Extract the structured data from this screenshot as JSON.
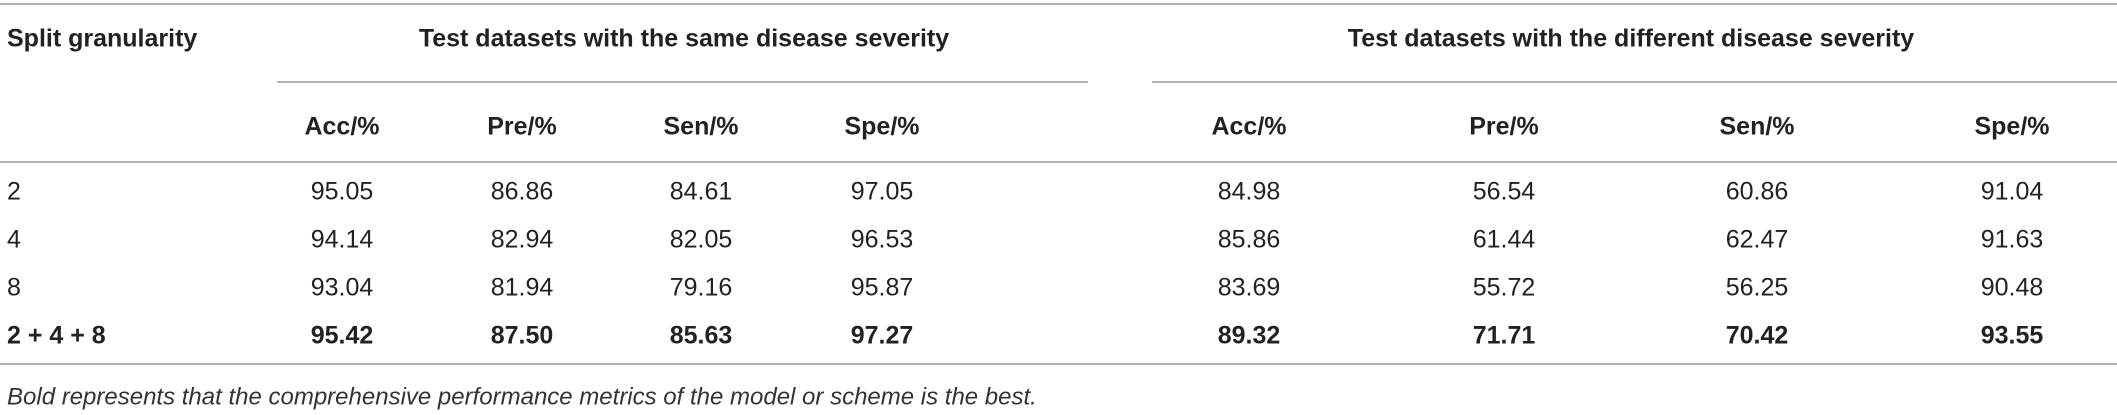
{
  "table": {
    "corner": "Split granularity",
    "groups": [
      "Test datasets with the same disease severity",
      "Test datasets with the different disease severity"
    ],
    "columns": [
      "Acc/%",
      "Pre/%",
      "Sen/%",
      "Spe/%",
      "Acc/%",
      "Pre/%",
      "Sen/%",
      "Spe/%"
    ],
    "rows": [
      [
        "2",
        "95.05",
        "86.86",
        "84.61",
        "97.05",
        "84.98",
        "56.54",
        "60.86",
        "91.04"
      ],
      [
        "4",
        "94.14",
        "82.94",
        "82.05",
        "96.53",
        "85.86",
        "61.44",
        "62.47",
        "91.63"
      ],
      [
        "8",
        "93.04",
        "81.94",
        "79.16",
        "95.87",
        "83.69",
        "55.72",
        "56.25",
        "90.48"
      ],
      [
        "2 + 4 + 8",
        "95.42",
        "87.50",
        "85.63",
        "97.27",
        "89.32",
        "71.71",
        "70.42",
        "93.55"
      ]
    ],
    "bold_row": 3,
    "footnote": "Bold represents that the comprehensive performance metrics of the model or scheme is the best."
  }
}
